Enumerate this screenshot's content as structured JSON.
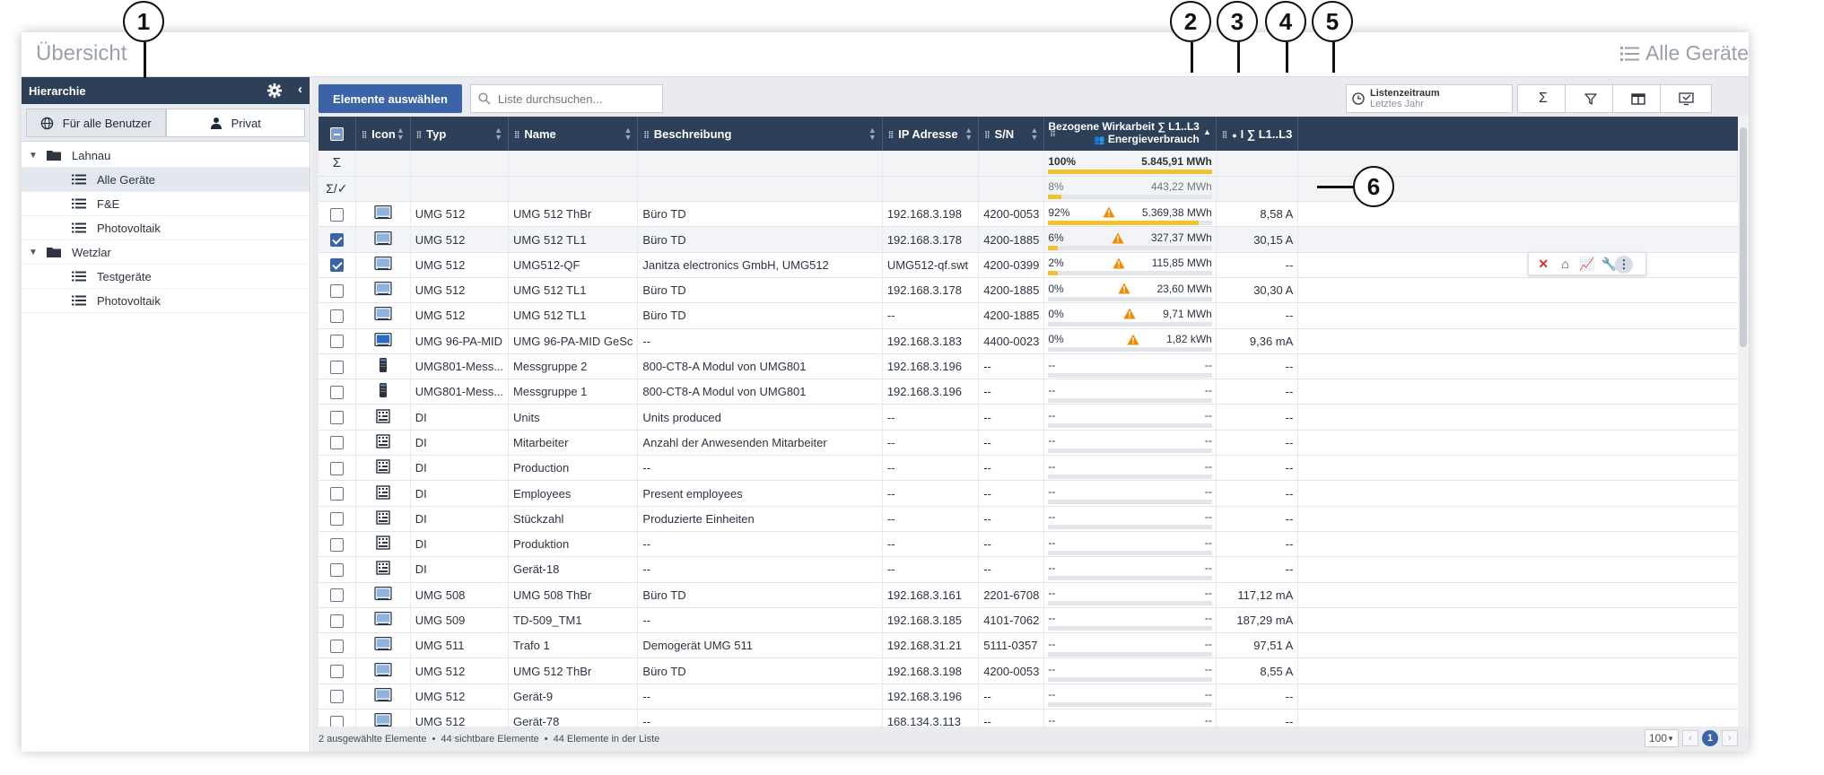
{
  "window": {
    "title": "Übersicht",
    "right_title": "Alle Geräte"
  },
  "sidebar": {
    "title": "Hierarchie",
    "scope": {
      "all_users": "Für alle Benutzer",
      "private": "Privat"
    },
    "tree": [
      {
        "label": "Lahnau",
        "type": "folder",
        "level": 0
      },
      {
        "label": "Alle Geräte",
        "type": "list",
        "level": 1,
        "selected": true
      },
      {
        "label": "F&E",
        "type": "list",
        "level": 1
      },
      {
        "label": "Photovoltaik",
        "type": "list",
        "level": 1
      },
      {
        "label": "Wetzlar",
        "type": "folder",
        "level": 0
      },
      {
        "label": "Testgeräte",
        "type": "list",
        "level": 1
      },
      {
        "label": "Photovoltaik",
        "type": "list",
        "level": 1
      }
    ]
  },
  "toolbar": {
    "select_button": "Elemente auswählen",
    "search_placeholder": "Liste durchsuchen...",
    "period_label": "Listenzeitraum",
    "period_value": "Letztes Jahr",
    "sum_icon": "Σ",
    "filter_icon": "filter-icon",
    "columns_icon": "columns-icon",
    "export_icon": "export-icon"
  },
  "table": {
    "headers": {
      "icon": "Icon",
      "type": "Typ",
      "name": "Name",
      "description": "Beschreibung",
      "ip": "IP Adresse",
      "sn": "S/N",
      "energy_line1": "Bezogene Wirkarbeit ∑ L1..L3",
      "energy_line2": "Energieverbrauch",
      "current": "I ∑ L1..L3"
    },
    "sum_row": {
      "symbol": "Σ",
      "pct": "100%",
      "value": "5.845,91 MWh"
    },
    "sum_check_row": {
      "symbol": "Σ/✓",
      "pct": "8%",
      "value": "443,22 MWh"
    },
    "rows": [
      {
        "checked": false,
        "icon": "device",
        "type": "UMG 512",
        "name": "UMG 512 ThBr",
        "desc": "Büro TD",
        "ip": "192.168.3.198",
        "sn": "4200-0053",
        "pct": "92%",
        "fill": 0.92,
        "warn": true,
        "energy": "5.369,38 MWh",
        "current": "8,58 A"
      },
      {
        "checked": true,
        "icon": "device",
        "type": "UMG 512",
        "name": "UMG 512 TL1",
        "desc": "Büro TD",
        "ip": "192.168.3.178",
        "sn": "4200-1885",
        "pct": "6%",
        "fill": 0.06,
        "warn": true,
        "energy": "327,37 MWh",
        "current": "30,15 A",
        "hover": true
      },
      {
        "checked": true,
        "icon": "device",
        "type": "UMG 512",
        "name": "UMG512-QF",
        "desc": "Janitza electronics GmbH, UMG512",
        "ip": "UMG512-qf.swt",
        "sn": "4200-0399",
        "pct": "2%",
        "fill": 0.02,
        "warn": true,
        "energy": "115,85 MWh",
        "current": "--"
      },
      {
        "checked": false,
        "icon": "device",
        "type": "UMG 512",
        "name": "UMG 512 TL1",
        "desc": "Büro TD",
        "ip": "192.168.3.178",
        "sn": "4200-1885",
        "pct": "0%",
        "fill": 0,
        "warn": true,
        "energy": "23,60 MWh",
        "current": "30,30 A"
      },
      {
        "checked": false,
        "icon": "device",
        "type": "UMG 512",
        "name": "UMG 512 TL1",
        "desc": "Büro TD",
        "ip": "--",
        "sn": "4200-1885",
        "pct": "0%",
        "fill": 0,
        "warn": true,
        "energy": "9,71 MWh",
        "current": "--"
      },
      {
        "checked": false,
        "icon": "device-blue",
        "type": "UMG 96-PA-MID",
        "name": "UMG 96-PA-MID GeSc",
        "desc": "--",
        "ip": "192.168.3.183",
        "sn": "4400-0023",
        "pct": "0%",
        "fill": 0,
        "warn": true,
        "energy": "1,82 kWh",
        "current": "9,36 mA"
      },
      {
        "checked": false,
        "icon": "module",
        "type": "UMG801-Mess...",
        "name": "Messgruppe 2",
        "desc": "800-CT8-A Modul von UMG801",
        "ip": "192.168.3.196",
        "sn": "--",
        "pct": "--",
        "fill": 0,
        "warn": false,
        "energy": "--",
        "current": "--"
      },
      {
        "checked": false,
        "icon": "module",
        "type": "UMG801-Mess...",
        "name": "Messgruppe 1",
        "desc": "800-CT8-A Modul von UMG801",
        "ip": "192.168.3.196",
        "sn": "--",
        "pct": "--",
        "fill": 0,
        "warn": false,
        "energy": "--",
        "current": "--"
      },
      {
        "checked": false,
        "icon": "di",
        "type": "DI",
        "name": "Units",
        "desc": "Units produced",
        "ip": "--",
        "sn": "--",
        "pct": "--",
        "fill": 0,
        "warn": false,
        "energy": "--",
        "current": "--"
      },
      {
        "checked": false,
        "icon": "di",
        "type": "DI",
        "name": "Mitarbeiter",
        "desc": "Anzahl der Anwesenden Mitarbeiter",
        "ip": "--",
        "sn": "--",
        "pct": "--",
        "fill": 0,
        "warn": false,
        "energy": "--",
        "current": "--"
      },
      {
        "checked": false,
        "icon": "di",
        "type": "DI",
        "name": "Production",
        "desc": "--",
        "ip": "--",
        "sn": "--",
        "pct": "--",
        "fill": 0,
        "warn": false,
        "energy": "--",
        "current": "--"
      },
      {
        "checked": false,
        "icon": "di",
        "type": "DI",
        "name": "Employees",
        "desc": "Present employees",
        "ip": "--",
        "sn": "--",
        "pct": "--",
        "fill": 0,
        "warn": false,
        "energy": "--",
        "current": "--"
      },
      {
        "checked": false,
        "icon": "di",
        "type": "DI",
        "name": "Stückzahl",
        "desc": "Produzierte Einheiten",
        "ip": "--",
        "sn": "--",
        "pct": "--",
        "fill": 0,
        "warn": false,
        "energy": "--",
        "current": "--"
      },
      {
        "checked": false,
        "icon": "di",
        "type": "DI",
        "name": "Produktion",
        "desc": "--",
        "ip": "--",
        "sn": "--",
        "pct": "--",
        "fill": 0,
        "warn": false,
        "energy": "--",
        "current": "--"
      },
      {
        "checked": false,
        "icon": "di",
        "type": "DI",
        "name": "Gerät-18",
        "desc": "--",
        "ip": "--",
        "sn": "--",
        "pct": "--",
        "fill": 0,
        "warn": false,
        "energy": "--",
        "current": "--"
      },
      {
        "checked": false,
        "icon": "device",
        "type": "UMG 508",
        "name": "UMG 508 ThBr",
        "desc": "Büro TD",
        "ip": "192.168.3.161",
        "sn": "2201-6708",
        "pct": "--",
        "fill": 0,
        "warn": false,
        "energy": "--",
        "current": "117,12 mA"
      },
      {
        "checked": false,
        "icon": "device",
        "type": "UMG 509",
        "name": "TD-509_TM1",
        "desc": "--",
        "ip": "192.168.3.185",
        "sn": "4101-7062",
        "pct": "--",
        "fill": 0,
        "warn": false,
        "energy": "--",
        "current": "187,29 mA"
      },
      {
        "checked": false,
        "icon": "device",
        "type": "UMG 511",
        "name": "Trafo 1",
        "desc": "Demogerät UMG 511",
        "ip": "192.168.31.21",
        "sn": "5111-0357",
        "pct": "--",
        "fill": 0,
        "warn": false,
        "energy": "--",
        "current": "97,51 A"
      },
      {
        "checked": false,
        "icon": "device",
        "type": "UMG 512",
        "name": "UMG 512 ThBr",
        "desc": "Büro TD",
        "ip": "192.168.3.198",
        "sn": "4200-0053",
        "pct": "--",
        "fill": 0,
        "warn": false,
        "energy": "--",
        "current": "8,55 A"
      },
      {
        "checked": false,
        "icon": "device",
        "type": "UMG 512",
        "name": "Gerät-9",
        "desc": "--",
        "ip": "192.168.3.196",
        "sn": "--",
        "pct": "--",
        "fill": 0,
        "warn": false,
        "energy": "--",
        "current": "--"
      },
      {
        "checked": false,
        "icon": "device",
        "type": "UMG 512",
        "name": "Gerät-78",
        "desc": "--",
        "ip": "168.134.3.113",
        "sn": "--",
        "pct": "--",
        "fill": 0,
        "warn": false,
        "energy": "--",
        "current": "--"
      }
    ]
  },
  "footer": {
    "selected": "2 ausgewählte Elemente",
    "visible": "44 sichtbare Elemente",
    "in_list": "44 Elemente in der Liste",
    "page_size": "100",
    "page": "1",
    "sep": "•"
  },
  "callouts": [
    "1",
    "2",
    "3",
    "4",
    "5",
    "6"
  ],
  "colors": {
    "header": "#2e3f58",
    "accent": "#3b64a8",
    "bar": "#f2c230",
    "warn": "#f08c00"
  }
}
